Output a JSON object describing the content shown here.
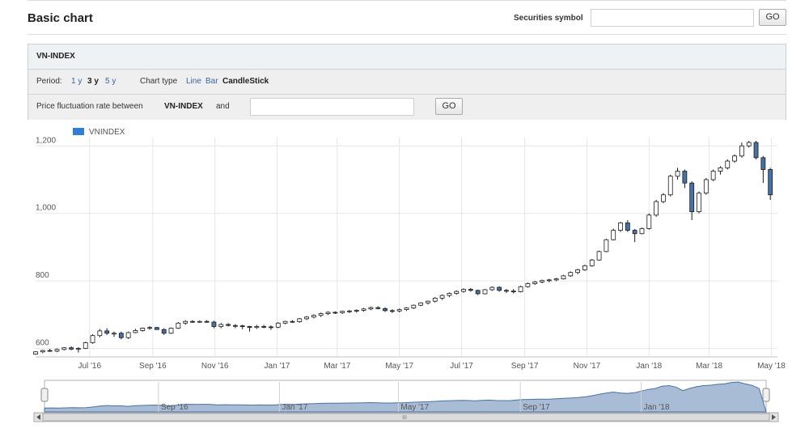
{
  "header": {
    "title": "Basic chart",
    "symbol_label": "Securities symbol",
    "symbol_value": "",
    "go_label": "GO"
  },
  "panel": {
    "symbol_title": "VN-INDEX",
    "period_label": "Period:",
    "periods": [
      {
        "label": "1 y",
        "active": false
      },
      {
        "label": "3 y",
        "active": true
      },
      {
        "label": "5 y",
        "active": false
      }
    ],
    "chart_type_label": "Chart type",
    "chart_types": [
      {
        "label": "Line",
        "active": false
      },
      {
        "label": "Bar",
        "active": false
      },
      {
        "label": "CandleStick",
        "active": true
      }
    ],
    "fluct_label": "Price fluctuation rate between",
    "fluct_symbol": "VN-INDEX",
    "fluct_and": "and",
    "fluct_value": "",
    "go_label": "GO"
  },
  "navigator": {
    "labels": [
      "Sep '16",
      "Jan '17",
      "May '17",
      "Sep '17",
      "Jan '18"
    ]
  },
  "colors": {
    "accent": "#2f7ed8",
    "down_candle": "#4572a7",
    "up_candle": "#ffffff",
    "grid": "#e6e6e6",
    "navigator_fill": "#a9bcd6"
  },
  "chart_data": {
    "type": "candlestick",
    "series": [
      {
        "name": "VNINDEX"
      }
    ],
    "legend": "top-left",
    "grid": true,
    "ylim": [
      575,
      1215
    ],
    "yticks": [
      "1,200",
      "1,000",
      "800",
      "600"
    ],
    "xticks": [
      "Jul '16",
      "Sep '16",
      "Nov '16",
      "Jan '17",
      "Mar '17",
      "May '17",
      "Jul '17",
      "Sep '17",
      "Nov '17",
      "Jan '18",
      "Mar '18",
      "May '18"
    ],
    "x_start": "2016-05-09",
    "x_end": "2018-05-07",
    "ohlc": [
      [
        "2016-05-09",
        583,
        592,
        581,
        590
      ],
      [
        "2016-05-16",
        590,
        596,
        586,
        594
      ],
      [
        "2016-05-23",
        594,
        599,
        590,
        592
      ],
      [
        "2016-05-30",
        592,
        600,
        589,
        597
      ],
      [
        "2016-06-06",
        597,
        604,
        594,
        602
      ],
      [
        "2016-06-13",
        602,
        606,
        595,
        598
      ],
      [
        "2016-06-20",
        598,
        604,
        588,
        600
      ],
      [
        "2016-06-27",
        600,
        620,
        598,
        617
      ],
      [
        "2016-07-04",
        617,
        642,
        614,
        638
      ],
      [
        "2016-07-11",
        638,
        658,
        633,
        652
      ],
      [
        "2016-07-18",
        652,
        660,
        640,
        645
      ],
      [
        "2016-07-25",
        645,
        650,
        634,
        645
      ],
      [
        "2016-08-01",
        645,
        650,
        627,
        632
      ],
      [
        "2016-08-08",
        632,
        650,
        628,
        647
      ],
      [
        "2016-08-15",
        647,
        658,
        645,
        653
      ],
      [
        "2016-08-22",
        653,
        662,
        650,
        660
      ],
      [
        "2016-08-29",
        660,
        666,
        655,
        662
      ],
      [
        "2016-09-05",
        662,
        664,
        655,
        656
      ],
      [
        "2016-09-12",
        656,
        660,
        640,
        645
      ],
      [
        "2016-09-19",
        645,
        662,
        643,
        660
      ],
      [
        "2016-09-26",
        660,
        678,
        658,
        675
      ],
      [
        "2016-10-03",
        675,
        684,
        670,
        680
      ],
      [
        "2016-10-10",
        680,
        684,
        676,
        679
      ],
      [
        "2016-10-17",
        679,
        683,
        676,
        680
      ],
      [
        "2016-10-24",
        680,
        684,
        676,
        678
      ],
      [
        "2016-10-31",
        678,
        682,
        660,
        665
      ],
      [
        "2016-11-07",
        665,
        675,
        660,
        671
      ],
      [
        "2016-11-14",
        671,
        675,
        665,
        668
      ],
      [
        "2016-11-21",
        668,
        672,
        660,
        667
      ],
      [
        "2016-11-28",
        667,
        670,
        657,
        665
      ],
      [
        "2016-12-05",
        665,
        667,
        650,
        662
      ],
      [
        "2016-12-12",
        662,
        670,
        658,
        665
      ],
      [
        "2016-12-19",
        665,
        670,
        660,
        664
      ],
      [
        "2016-12-26",
        664,
        668,
        655,
        663
      ],
      [
        "2017-01-02",
        663,
        678,
        660,
        675
      ],
      [
        "2017-01-09",
        675,
        682,
        672,
        680
      ],
      [
        "2017-01-16",
        680,
        684,
        676,
        679
      ],
      [
        "2017-01-23",
        679,
        690,
        676,
        688
      ],
      [
        "2017-01-30",
        688,
        696,
        684,
        693
      ],
      [
        "2017-02-06",
        693,
        701,
        689,
        698
      ],
      [
        "2017-02-13",
        698,
        706,
        693,
        703
      ],
      [
        "2017-02-20",
        703,
        710,
        699,
        707
      ],
      [
        "2017-02-27",
        707,
        710,
        702,
        706
      ],
      [
        "2017-03-06",
        706,
        712,
        702,
        710
      ],
      [
        "2017-03-13",
        710,
        714,
        705,
        711
      ],
      [
        "2017-03-20",
        711,
        716,
        706,
        713
      ],
      [
        "2017-03-27",
        713,
        720,
        709,
        717
      ],
      [
        "2017-04-03",
        717,
        724,
        713,
        721
      ],
      [
        "2017-04-10",
        721,
        725,
        716,
        718
      ],
      [
        "2017-04-17",
        718,
        722,
        708,
        712
      ],
      [
        "2017-04-24",
        712,
        716,
        705,
        711
      ],
      [
        "2017-05-01",
        711,
        718,
        707,
        715
      ],
      [
        "2017-05-08",
        715,
        722,
        711,
        720
      ],
      [
        "2017-05-15",
        720,
        730,
        717,
        728
      ],
      [
        "2017-05-22",
        728,
        737,
        725,
        735
      ],
      [
        "2017-05-29",
        735,
        742,
        730,
        740
      ],
      [
        "2017-06-05",
        740,
        752,
        736,
        749
      ],
      [
        "2017-06-12",
        749,
        760,
        744,
        757
      ],
      [
        "2017-06-19",
        757,
        766,
        752,
        763
      ],
      [
        "2017-06-26",
        763,
        772,
        759,
        769
      ],
      [
        "2017-07-03",
        769,
        778,
        765,
        775
      ],
      [
        "2017-07-10",
        775,
        779,
        768,
        772
      ],
      [
        "2017-07-17",
        772,
        774,
        758,
        762
      ],
      [
        "2017-07-24",
        762,
        776,
        760,
        774
      ],
      [
        "2017-07-31",
        774,
        784,
        770,
        781
      ],
      [
        "2017-08-07",
        781,
        784,
        768,
        772
      ],
      [
        "2017-08-14",
        772,
        776,
        764,
        770
      ],
      [
        "2017-08-21",
        770,
        776,
        763,
        768
      ],
      [
        "2017-08-28",
        768,
        786,
        766,
        783
      ],
      [
        "2017-09-04",
        783,
        795,
        780,
        792
      ],
      [
        "2017-09-11",
        792,
        800,
        788,
        797
      ],
      [
        "2017-09-18",
        797,
        804,
        793,
        801
      ],
      [
        "2017-09-25",
        801,
        806,
        796,
        803
      ],
      [
        "2017-10-02",
        803,
        809,
        799,
        806
      ],
      [
        "2017-10-09",
        806,
        818,
        804,
        815
      ],
      [
        "2017-10-16",
        815,
        828,
        812,
        825
      ],
      [
        "2017-10-23",
        825,
        836,
        820,
        833
      ],
      [
        "2017-10-30",
        833,
        848,
        830,
        845
      ],
      [
        "2017-11-06",
        845,
        865,
        842,
        862
      ],
      [
        "2017-11-13",
        862,
        890,
        860,
        887
      ],
      [
        "2017-11-20",
        887,
        925,
        885,
        922
      ],
      [
        "2017-11-27",
        922,
        955,
        920,
        950
      ],
      [
        "2017-12-04",
        950,
        975,
        945,
        972
      ],
      [
        "2017-12-11",
        972,
        980,
        945,
        950
      ],
      [
        "2017-12-18",
        950,
        954,
        915,
        940
      ],
      [
        "2017-12-25",
        940,
        958,
        938,
        955
      ],
      [
        "2018-01-01",
        955,
        1000,
        952,
        995
      ],
      [
        "2018-01-08",
        995,
        1040,
        990,
        1035
      ],
      [
        "2018-01-15",
        1035,
        1060,
        1030,
        1055
      ],
      [
        "2018-01-22",
        1055,
        1115,
        1050,
        1110
      ],
      [
        "2018-01-29",
        1110,
        1135,
        1100,
        1125
      ],
      [
        "2018-02-05",
        1125,
        1130,
        1075,
        1090
      ],
      [
        "2018-02-12",
        1090,
        1095,
        980,
        1005
      ],
      [
        "2018-02-19",
        1005,
        1065,
        1000,
        1060
      ],
      [
        "2018-02-26",
        1060,
        1105,
        1055,
        1100
      ],
      [
        "2018-03-05",
        1100,
        1130,
        1095,
        1125
      ],
      [
        "2018-03-12",
        1125,
        1140,
        1115,
        1135
      ],
      [
        "2018-03-19",
        1135,
        1160,
        1130,
        1155
      ],
      [
        "2018-03-26",
        1155,
        1175,
        1150,
        1170
      ],
      [
        "2018-04-02",
        1170,
        1210,
        1165,
        1200
      ],
      [
        "2018-04-09",
        1200,
        1215,
        1195,
        1210
      ],
      [
        "2018-04-16",
        1210,
        1215,
        1160,
        1165
      ],
      [
        "2018-04-23",
        1165,
        1170,
        1090,
        1130
      ],
      [
        "2018-04-30",
        1130,
        1135,
        1040,
        1055
      ]
    ]
  }
}
